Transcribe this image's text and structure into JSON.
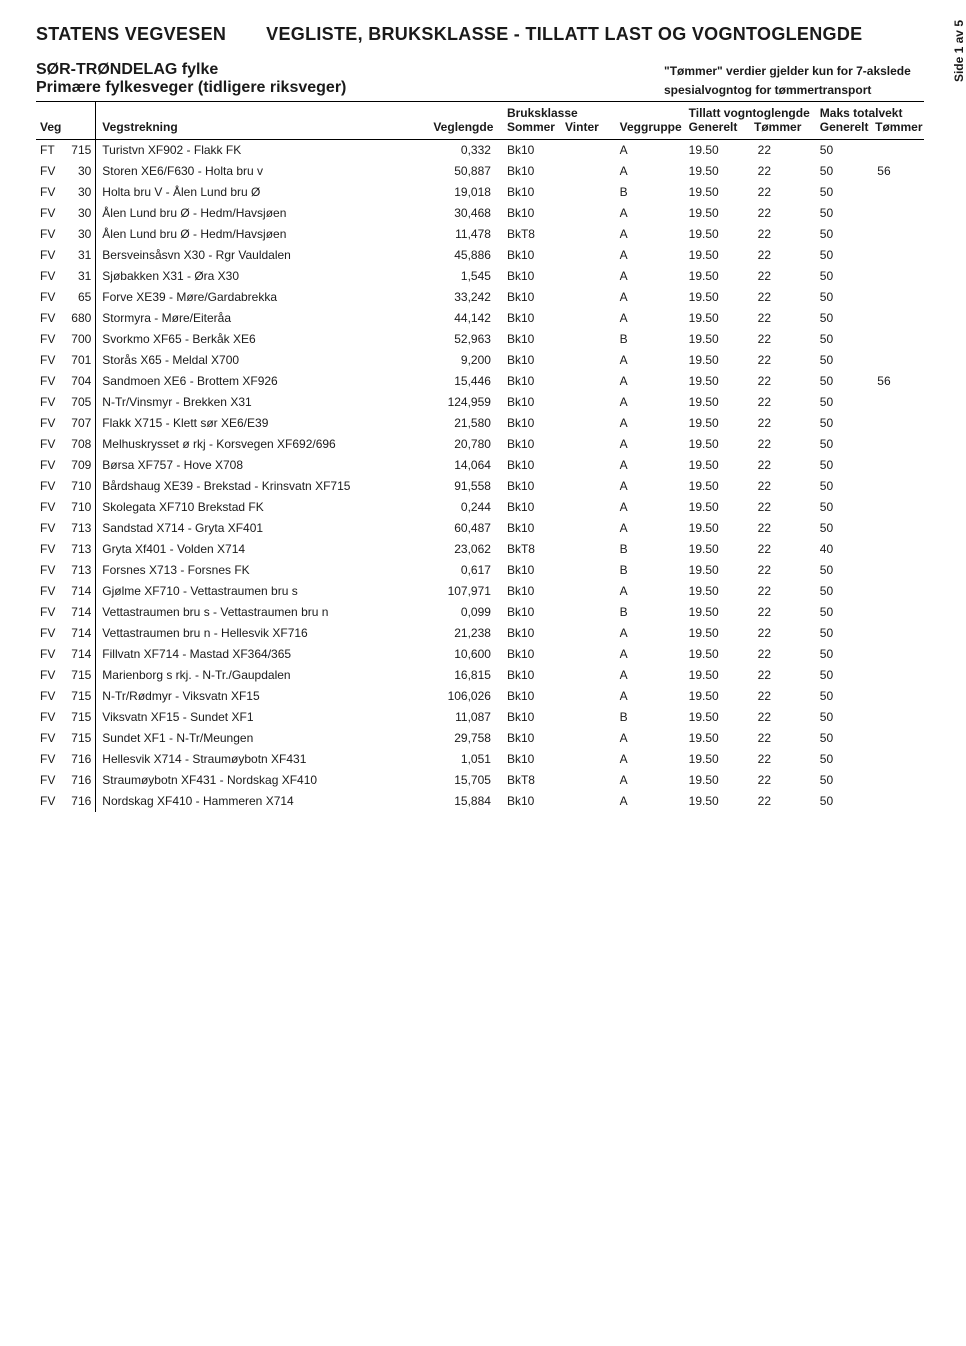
{
  "header": {
    "agency": "STATENS VEGVESEN",
    "title": "VEGLISTE,  BRUKSKLASSE - TILLATT LAST OG VOGNTOGLENGDE",
    "region": "SØR-TRØNDELAG fylke",
    "subtitle": "Primære fylkesveger (tidligere riksveger)",
    "note1": "\"Tømmer\" verdier gjelder kun for 7-akslede",
    "note2": "spesialvogntog for tømmertransport"
  },
  "footer": {
    "page": "Side 1 av 5"
  },
  "columns": {
    "veg": "Veg",
    "vegstrekning": "Vegstrekning",
    "veglengde": "Veglengde",
    "bruksklasse": "Bruksklasse",
    "sommer": "Sommer",
    "vinter": "Vinter",
    "veggruppe": "Veggruppe",
    "tillatt": "Tillatt vogntoglengde",
    "generelt": "Generelt",
    "tommer": "Tømmer",
    "maks": "Maks totalvekt"
  },
  "rows": [
    {
      "t": "FT",
      "n": "715",
      "name": "Turistvn XF902 - Flakk FK",
      "len": "0,332",
      "bks": "Bk10",
      "bkv": "",
      "grp": "A",
      "lg": "19.50",
      "lt": "22",
      "wg": "50",
      "wt": ""
    },
    {
      "t": "FV",
      "n": "30",
      "name": "Storen XE6/F630 - Holta bru v",
      "len": "50,887",
      "bks": "Bk10",
      "bkv": "",
      "grp": "A",
      "lg": "19.50",
      "lt": "22",
      "wg": "50",
      "wt": "56"
    },
    {
      "t": "FV",
      "n": "30",
      "name": "Holta bru V - Ålen Lund bru Ø",
      "len": "19,018",
      "bks": "Bk10",
      "bkv": "",
      "grp": "B",
      "lg": "19.50",
      "lt": "22",
      "wg": "50",
      "wt": ""
    },
    {
      "t": "FV",
      "n": "30",
      "name": "Ålen Lund bru Ø  - Hedm/Havsjøen",
      "len": "30,468",
      "bks": "Bk10",
      "bkv": "",
      "grp": "A",
      "lg": "19.50",
      "lt": "22",
      "wg": "50",
      "wt": ""
    },
    {
      "t": "FV",
      "n": "30",
      "name": "Ålen Lund bru Ø  - Hedm/Havsjøen",
      "len": "11,478",
      "bks": "BkT8",
      "bkv": "",
      "grp": "A",
      "lg": "19.50",
      "lt": "22",
      "wg": "50",
      "wt": ""
    },
    {
      "t": "FV",
      "n": "31",
      "name": "Bersveinsåsvn X30 - Rgr Vauldalen",
      "len": "45,886",
      "bks": "Bk10",
      "bkv": "",
      "grp": "A",
      "lg": "19.50",
      "lt": "22",
      "wg": "50",
      "wt": ""
    },
    {
      "t": "FV",
      "n": "31",
      "name": "Sjøbakken X31 - Øra X30",
      "len": "1,545",
      "bks": "Bk10",
      "bkv": "",
      "grp": "A",
      "lg": "19.50",
      "lt": "22",
      "wg": "50",
      "wt": ""
    },
    {
      "t": "FV",
      "n": "65",
      "name": "Forve XE39 - Møre/Gardabrekka",
      "len": "33,242",
      "bks": "Bk10",
      "bkv": "",
      "grp": "A",
      "lg": "19.50",
      "lt": "22",
      "wg": "50",
      "wt": ""
    },
    {
      "t": "FV",
      "n": "680",
      "name": "Stormyra - Møre/Eiteråa",
      "len": "44,142",
      "bks": "Bk10",
      "bkv": "",
      "grp": "A",
      "lg": "19.50",
      "lt": "22",
      "wg": "50",
      "wt": ""
    },
    {
      "t": "FV",
      "n": "700",
      "name": "Svorkmo XF65 - Berkåk XE6",
      "len": "52,963",
      "bks": "Bk10",
      "bkv": "",
      "grp": "B",
      "lg": "19.50",
      "lt": "22",
      "wg": "50",
      "wt": ""
    },
    {
      "t": "FV",
      "n": "701",
      "name": "Storås X65 - Meldal X700",
      "len": "9,200",
      "bks": "Bk10",
      "bkv": "",
      "grp": "A",
      "lg": "19.50",
      "lt": "22",
      "wg": "50",
      "wt": ""
    },
    {
      "t": "FV",
      "n": "704",
      "name": "Sandmoen XE6 - Brottem XF926",
      "len": "15,446",
      "bks": "Bk10",
      "bkv": "",
      "grp": "A",
      "lg": "19.50",
      "lt": "22",
      "wg": "50",
      "wt": "56"
    },
    {
      "t": "FV",
      "n": "705",
      "name": "N-Tr/Vinsmyr - Brekken X31",
      "len": "124,959",
      "bks": "Bk10",
      "bkv": "",
      "grp": "A",
      "lg": "19.50",
      "lt": "22",
      "wg": "50",
      "wt": ""
    },
    {
      "t": "FV",
      "n": "707",
      "name": "Flakk X715 - Klett sør XE6/E39",
      "len": "21,580",
      "bks": "Bk10",
      "bkv": "",
      "grp": "A",
      "lg": "19.50",
      "lt": "22",
      "wg": "50",
      "wt": ""
    },
    {
      "t": "FV",
      "n": "708",
      "name": "Melhuskrysset ø rkj - Korsvegen XF692/696",
      "len": "20,780",
      "bks": "Bk10",
      "bkv": "",
      "grp": "A",
      "lg": "19.50",
      "lt": "22",
      "wg": "50",
      "wt": ""
    },
    {
      "t": "FV",
      "n": "709",
      "name": "Børsa XF757 - Hove X708",
      "len": "14,064",
      "bks": "Bk10",
      "bkv": "",
      "grp": "A",
      "lg": "19.50",
      "lt": "22",
      "wg": "50",
      "wt": ""
    },
    {
      "t": "FV",
      "n": "710",
      "name": "Bårdshaug XE39 - Brekstad - Krinsvatn XF715",
      "len": "91,558",
      "bks": "Bk10",
      "bkv": "",
      "grp": "A",
      "lg": "19.50",
      "lt": "22",
      "wg": "50",
      "wt": ""
    },
    {
      "t": "FV",
      "n": "710",
      "name": "Skolegata XF710  Brekstad FK",
      "len": "0,244",
      "bks": "Bk10",
      "bkv": "",
      "grp": "A",
      "lg": "19.50",
      "lt": "22",
      "wg": "50",
      "wt": ""
    },
    {
      "t": "FV",
      "n": "713",
      "name": "Sandstad X714 - Gryta XF401",
      "len": "60,487",
      "bks": "Bk10",
      "bkv": "",
      "grp": "A",
      "lg": "19.50",
      "lt": "22",
      "wg": "50",
      "wt": ""
    },
    {
      "t": "FV",
      "n": "713",
      "name": "Gryta Xf401 - Volden X714",
      "len": "23,062",
      "bks": "BkT8",
      "bkv": "",
      "grp": "B",
      "lg": "19.50",
      "lt": "22",
      "wg": "40",
      "wt": ""
    },
    {
      "t": "FV",
      "n": "713",
      "name": "Forsnes X713 - Forsnes FK",
      "len": "0,617",
      "bks": "Bk10",
      "bkv": "",
      "grp": "B",
      "lg": "19.50",
      "lt": "22",
      "wg": "50",
      "wt": ""
    },
    {
      "t": "FV",
      "n": "714",
      "name": "Gjølme XF710 - Vettastraumen bru s",
      "len": "107,971",
      "bks": "Bk10",
      "bkv": "",
      "grp": "A",
      "lg": "19.50",
      "lt": "22",
      "wg": "50",
      "wt": ""
    },
    {
      "t": "FV",
      "n": "714",
      "name": "Vettastraumen bru s - Vettastraumen bru n",
      "len": "0,099",
      "bks": "Bk10",
      "bkv": "",
      "grp": "B",
      "lg": "19.50",
      "lt": "22",
      "wg": "50",
      "wt": ""
    },
    {
      "t": "FV",
      "n": "714",
      "name": "Vettastraumen bru n - Hellesvik XF716",
      "len": "21,238",
      "bks": "Bk10",
      "bkv": "",
      "grp": "A",
      "lg": "19.50",
      "lt": "22",
      "wg": "50",
      "wt": ""
    },
    {
      "t": "FV",
      "n": "714",
      "name": "Fillvatn XF714 - Mastad XF364/365",
      "len": "10,600",
      "bks": "Bk10",
      "bkv": "",
      "grp": "A",
      "lg": "19.50",
      "lt": "22",
      "wg": "50",
      "wt": ""
    },
    {
      "t": "FV",
      "n": "715",
      "name": "Marienborg s rkj. - N-Tr./Gaupdalen",
      "len": "16,815",
      "bks": "Bk10",
      "bkv": "",
      "grp": "A",
      "lg": "19.50",
      "lt": "22",
      "wg": "50",
      "wt": ""
    },
    {
      "t": "FV",
      "n": "715",
      "name": "N-Tr/Rødmyr - Viksvatn XF15",
      "len": "106,026",
      "bks": "Bk10",
      "bkv": "",
      "grp": "A",
      "lg": "19.50",
      "lt": "22",
      "wg": "50",
      "wt": ""
    },
    {
      "t": "FV",
      "n": "715",
      "name": "Viksvatn XF15 - Sundet XF1",
      "len": "11,087",
      "bks": "Bk10",
      "bkv": "",
      "grp": "B",
      "lg": "19.50",
      "lt": "22",
      "wg": "50",
      "wt": ""
    },
    {
      "t": "FV",
      "n": "715",
      "name": "Sundet XF1 - N-Tr/Meungen",
      "len": "29,758",
      "bks": "Bk10",
      "bkv": "",
      "grp": "A",
      "lg": "19.50",
      "lt": "22",
      "wg": "50",
      "wt": ""
    },
    {
      "t": "FV",
      "n": "716",
      "name": "Hellesvik X714 - Straumøybotn XF431",
      "len": "1,051",
      "bks": "Bk10",
      "bkv": "",
      "grp": "A",
      "lg": "19.50",
      "lt": "22",
      "wg": "50",
      "wt": ""
    },
    {
      "t": "FV",
      "n": "716",
      "name": "Straumøybotn XF431 - Nordskag XF410",
      "len": "15,705",
      "bks": "BkT8",
      "bkv": "",
      "grp": "A",
      "lg": "19.50",
      "lt": "22",
      "wg": "50",
      "wt": ""
    },
    {
      "t": "FV",
      "n": "716",
      "name": "Nordskag XF410 - Hammeren X714",
      "len": "15,884",
      "bks": "Bk10",
      "bkv": "",
      "grp": "A",
      "lg": "19.50",
      "lt": "22",
      "wg": "50",
      "wt": ""
    }
  ]
}
